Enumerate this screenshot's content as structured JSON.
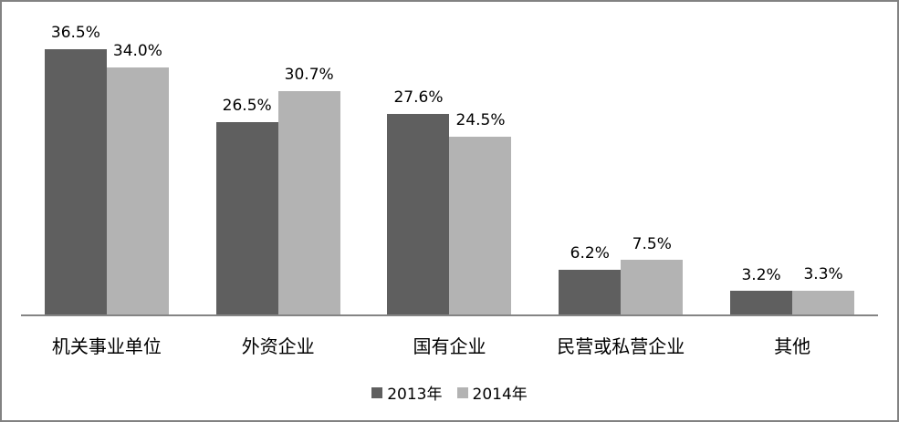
{
  "chart_data": {
    "type": "bar",
    "title": "",
    "xlabel": "",
    "ylabel": "",
    "categories": [
      "机关事业单位",
      "外资企业",
      "国有企业",
      "民营或私营企业",
      "其他"
    ],
    "series": [
      {
        "name": "2013年",
        "color": "#5F5F5F",
        "values": [
          36.5,
          26.5,
          27.6,
          6.2,
          3.2
        ],
        "labels": [
          "36.5%",
          "26.5%",
          "27.6%",
          "6.2%",
          "3.2%"
        ]
      },
      {
        "name": "2014年",
        "color": "#B3B3B3",
        "values": [
          34.0,
          30.7,
          24.5,
          7.5,
          3.3
        ],
        "labels": [
          "34.0%",
          "30.7%",
          "24.5%",
          "7.5%",
          "3.3%"
        ]
      }
    ],
    "ylim": [
      0,
      40
    ],
    "grid": false,
    "y_axis_visible": false,
    "value_labels_shown": true,
    "legend_position": "bottom",
    "colors": {
      "axis": "#848484",
      "frame_border": "#828282",
      "text": "#000000",
      "background": "#FFFFFF"
    }
  }
}
